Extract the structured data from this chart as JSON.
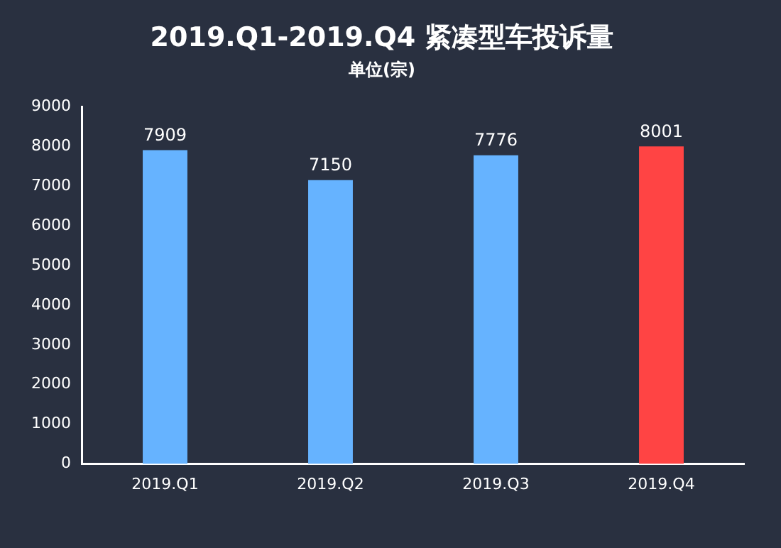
{
  "chart_data": {
    "type": "bar",
    "title": "2019.Q1-2019.Q4 紧凑型车投诉量",
    "subtitle": "单位(宗)",
    "categories": [
      "2019.Q1",
      "2019.Q2",
      "2019.Q3",
      "2019.Q4"
    ],
    "values": [
      7909,
      7150,
      7776,
      8001
    ],
    "colors": [
      "#66b3ff",
      "#66b3ff",
      "#66b3ff",
      "#ff4444"
    ],
    "ylim": [
      0,
      9000
    ],
    "yticks": [
      0,
      1000,
      2000,
      3000,
      4000,
      5000,
      6000,
      7000,
      8000,
      9000
    ],
    "data_labels": true,
    "grid": false,
    "legend": false
  }
}
